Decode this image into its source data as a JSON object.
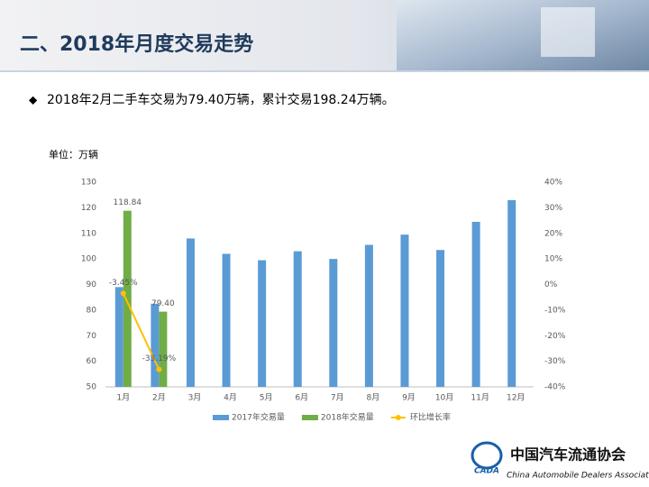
{
  "header_title": "二、2018年月度交易走势",
  "bullet": "2018年2月二手车交易为79.40万辆，累计交易198.24万辆。",
  "unit_label": "单位：万辆",
  "logo": {
    "abbr": "CADA",
    "name_cn": "中国汽车流通协会",
    "name_en": "China Automobile Dealers Association"
  },
  "chart_data": {
    "type": "bar",
    "categories": [
      "1月",
      "2月",
      "3月",
      "4月",
      "5月",
      "6月",
      "7月",
      "8月",
      "9月",
      "10月",
      "11月",
      "12月"
    ],
    "series": [
      {
        "name": "2017年交易量",
        "color": "#5b9bd5",
        "values": [
          89,
          82.5,
          108,
          102,
          99.5,
          103,
          100,
          105.5,
          109.5,
          103.5,
          114.5,
          123
        ]
      },
      {
        "name": "2018年交易量",
        "color": "#70ad47",
        "values": [
          118.84,
          79.4,
          null,
          null,
          null,
          null,
          null,
          null,
          null,
          null,
          null,
          null
        ],
        "value_labels": [
          "118.84",
          "79.40",
          null,
          null,
          null,
          null,
          null,
          null,
          null,
          null,
          null,
          null
        ]
      },
      {
        "name": "环比增长率",
        "color": "#ffc000",
        "type": "line",
        "axis": "y2",
        "values": [
          -3.45,
          -33.19,
          null,
          null,
          null,
          null,
          null,
          null,
          null,
          null,
          null,
          null
        ],
        "value_labels": [
          "-3.45%",
          "-33.19%",
          null,
          null,
          null,
          null,
          null,
          null,
          null,
          null,
          null,
          null
        ]
      }
    ],
    "ylim": [
      50,
      130
    ],
    "yticks": [
      50,
      60,
      70,
      80,
      90,
      100,
      110,
      120,
      130
    ],
    "y2lim": [
      -40,
      40
    ],
    "y2ticks": [
      {
        "value": -40,
        "label": "-40%"
      },
      {
        "value": -30,
        "label": "-30%"
      },
      {
        "value": -20,
        "label": "-20%"
      },
      {
        "value": -10,
        "label": "-10%"
      },
      {
        "value": 0,
        "label": "0%"
      },
      {
        "value": 10,
        "label": "10%"
      },
      {
        "value": 20,
        "label": "20%"
      },
      {
        "value": 30,
        "label": "30%"
      },
      {
        "value": 40,
        "label": "40%"
      }
    ],
    "grid": false,
    "legend": "bottom"
  }
}
